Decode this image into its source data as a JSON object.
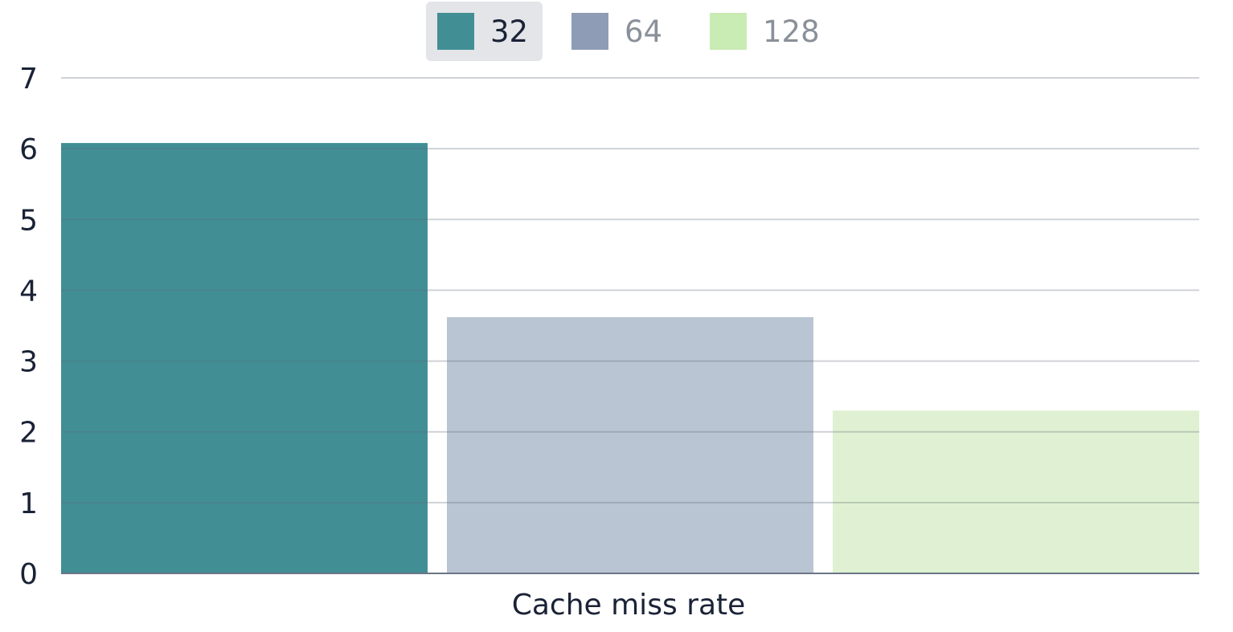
{
  "chart_data": {
    "type": "bar",
    "categories": [
      "Cache miss rate"
    ],
    "series": [
      {
        "name": "32",
        "values": [
          6.08
        ],
        "color": "#418f95",
        "fill": "#418f95",
        "active": true
      },
      {
        "name": "64",
        "values": [
          3.62
        ],
        "color": "#8e9db5",
        "fill": "#b9c5d3",
        "active": false
      },
      {
        "name": "128",
        "values": [
          2.3
        ],
        "color": "#c9ebb4",
        "fill": "#dff1d2",
        "active": false
      }
    ],
    "ylim": [
      0,
      7
    ],
    "yticks": [
      "0",
      "1",
      "2",
      "3",
      "4",
      "5",
      "6",
      "7"
    ],
    "grid": true,
    "legend": "top-center",
    "title": "",
    "xlabel": "",
    "ylabel": ""
  }
}
